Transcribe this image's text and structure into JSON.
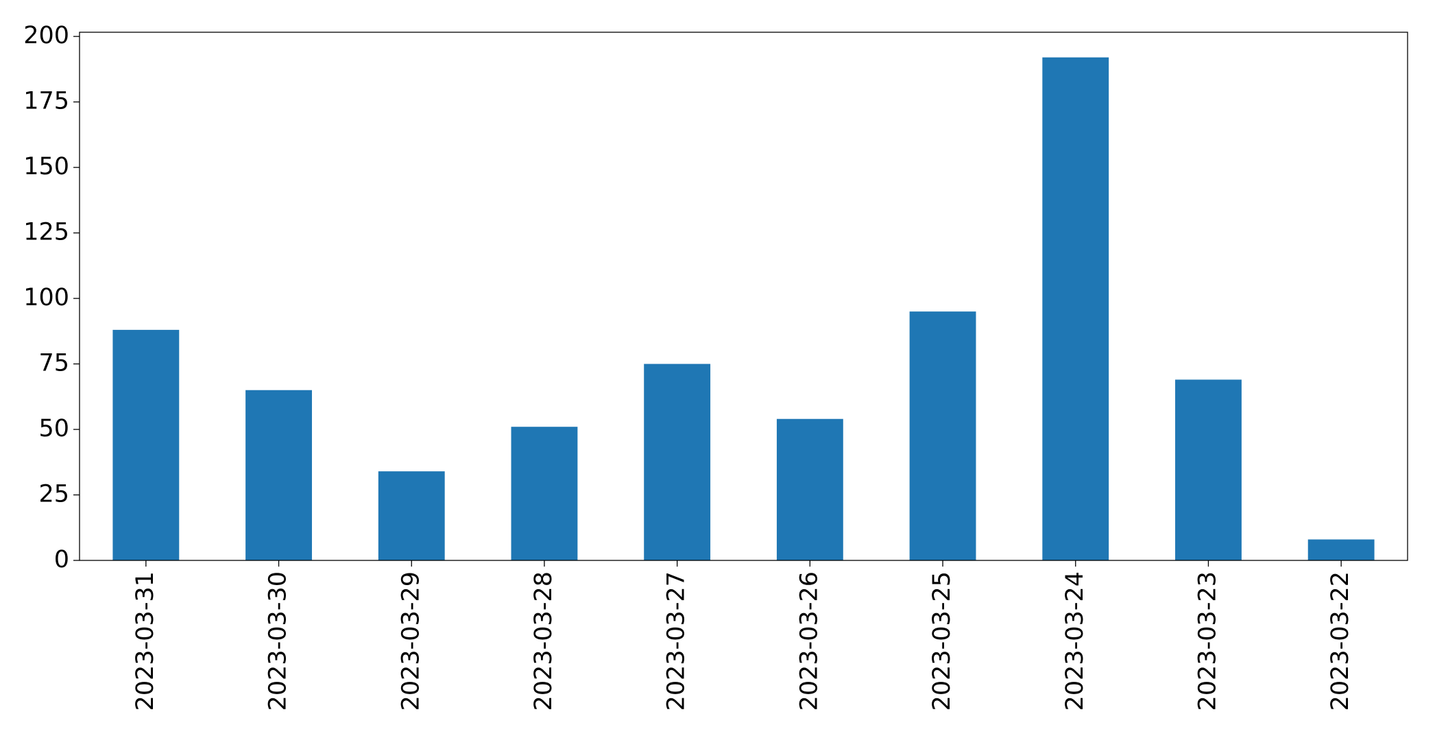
{
  "chart_data": {
    "type": "bar",
    "categories": [
      "2023-03-31",
      "2023-03-30",
      "2023-03-29",
      "2023-03-28",
      "2023-03-27",
      "2023-03-26",
      "2023-03-25",
      "2023-03-24",
      "2023-03-23",
      "2023-03-22"
    ],
    "values": [
      88,
      65,
      34,
      51,
      75,
      54,
      95,
      192,
      69,
      8
    ],
    "color": "#1f77b4",
    "ylim": [
      0,
      201.6
    ],
    "yticks": [
      0,
      25,
      50,
      75,
      100,
      125,
      150,
      175,
      200
    ],
    "grid": false
  }
}
